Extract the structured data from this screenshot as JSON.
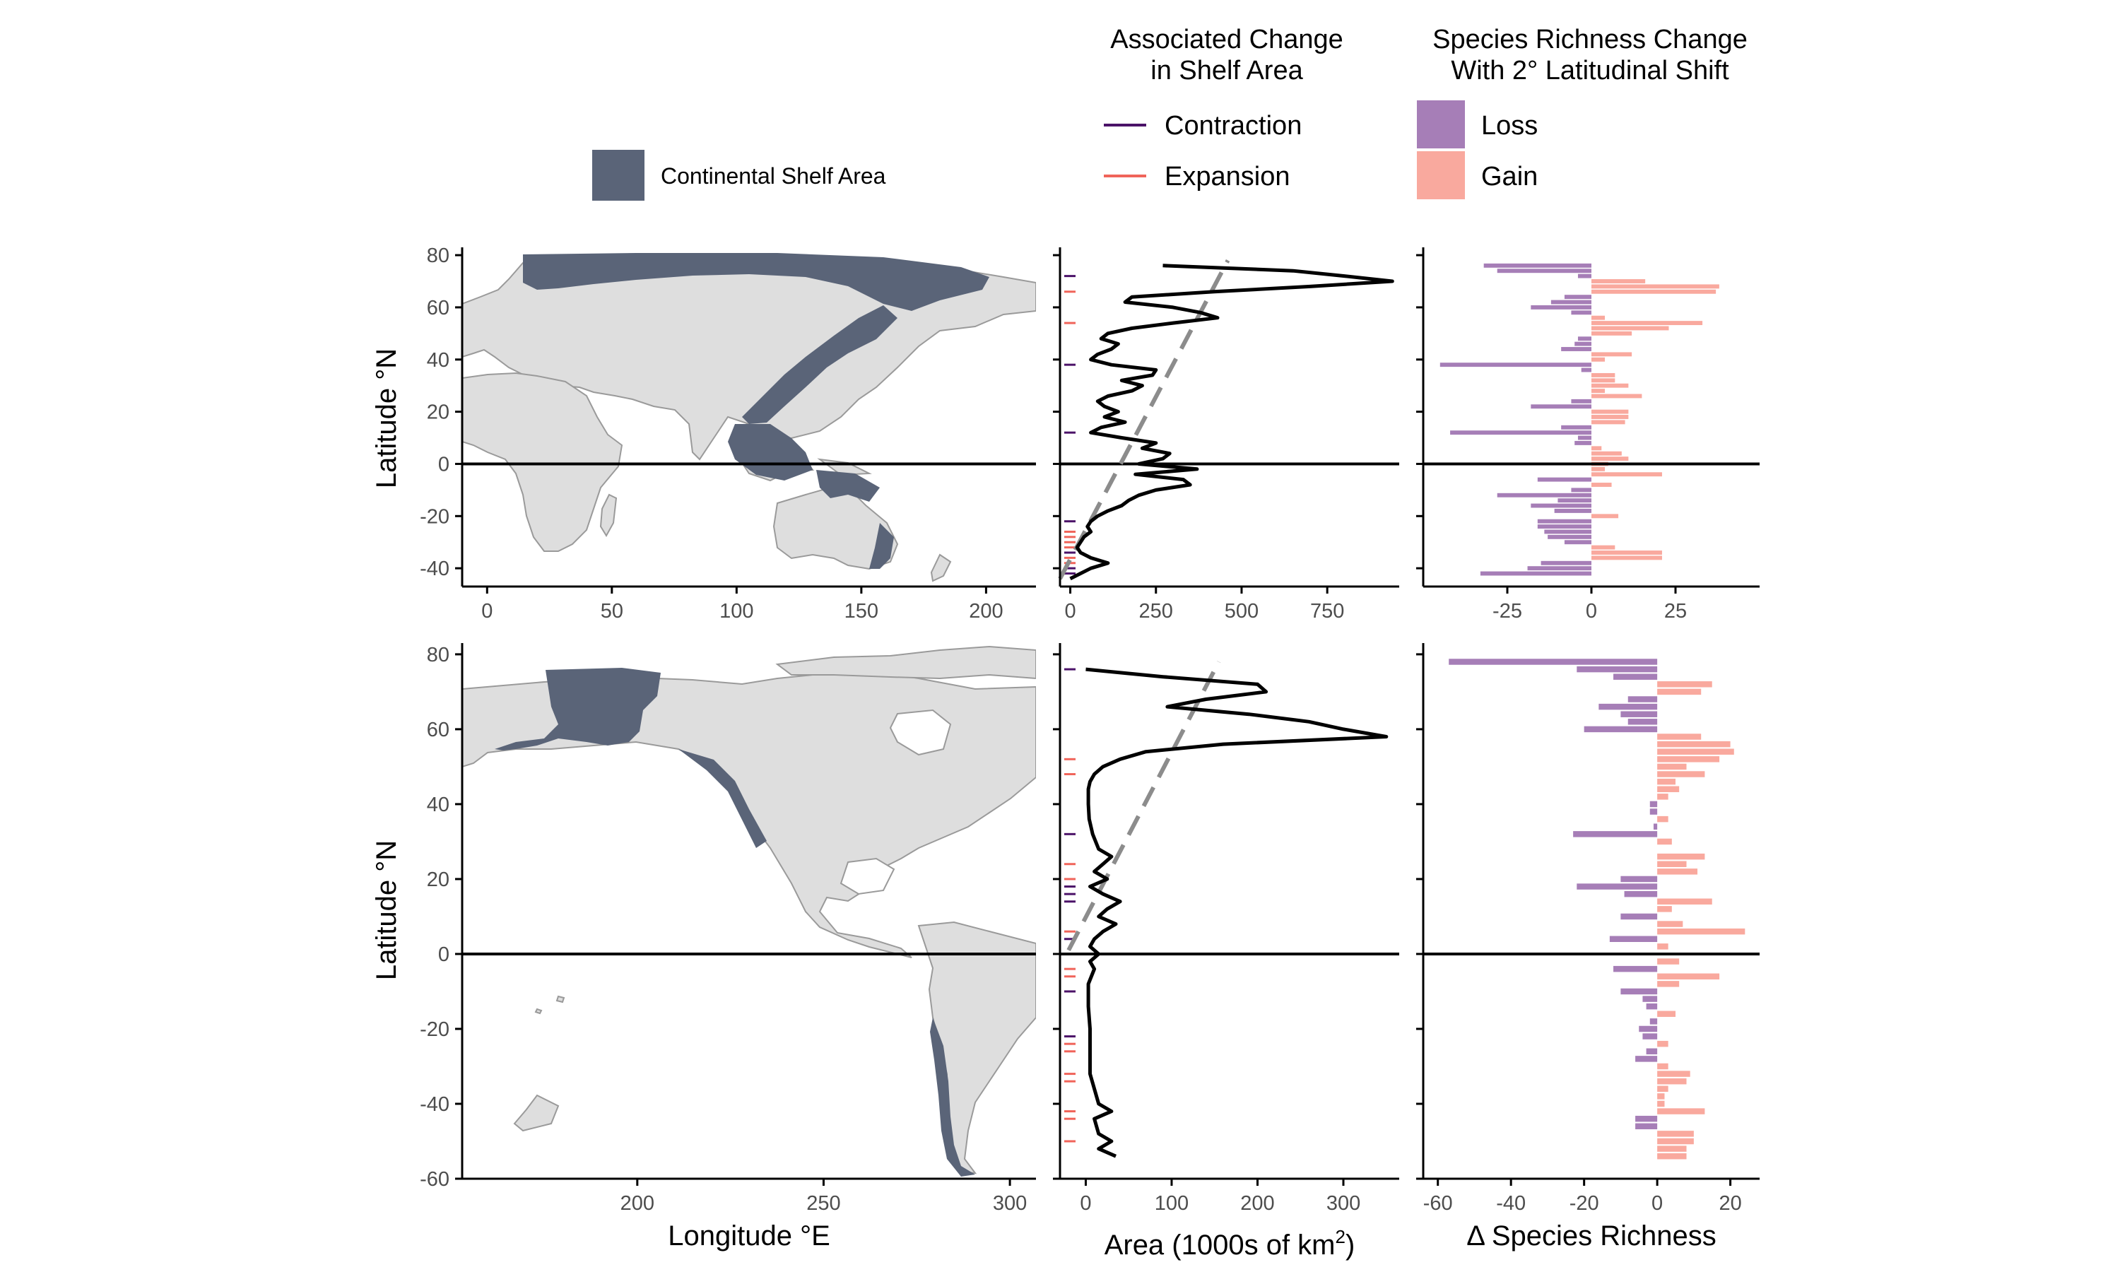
{
  "colors": {
    "shelf": "#5a6478",
    "land": "#dedede",
    "land_border": "#9a9a9a",
    "contraction": "#4b1268",
    "expansion": "#f0645a",
    "loss": "#a67eb7",
    "gain": "#f9a99e",
    "trend": "#8c8c8c",
    "profile": "#000000"
  },
  "legends": {
    "shelf": {
      "label": "Continental Shelf Area"
    },
    "change": {
      "title_line1": "Associated Change",
      "title_line2": "in Shelf Area",
      "items": [
        "Contraction",
        "Expansion"
      ]
    },
    "richness": {
      "title_line1": "Species Richness Change",
      "title_line2": "With 2° Latitudinal Shift",
      "items": [
        "Loss",
        "Gain"
      ]
    }
  },
  "axes": {
    "lat_title": "Latitude °N",
    "lon_title": "Longitude °E",
    "area_title_main": "Area (1000s of km",
    "area_title_sup": "2",
    "area_title_close": ")",
    "richness_title": "Δ Species Richness"
  },
  "chart_data": [
    {
      "type": "area",
      "panel": "top-map",
      "description_source": "map of Eurasia/Africa/Australia with shelf area highlighted",
      "xlim": [
        -10,
        220
      ],
      "ylim": [
        -47,
        83
      ],
      "xticks": [
        0,
        50,
        100,
        150,
        200
      ],
      "yticks": [
        -40,
        -20,
        0,
        20,
        40,
        60,
        80
      ]
    },
    {
      "type": "line",
      "panel": "top-area",
      "xlim": [
        -30,
        960
      ],
      "ylim": [
        -47,
        83
      ],
      "xticks": [
        0,
        250,
        500,
        750
      ],
      "yticks": [
        -40,
        -20,
        0,
        20,
        40,
        60,
        80
      ],
      "profile": [
        {
          "lat": 76,
          "area": 270
        },
        {
          "lat": 74,
          "area": 650
        },
        {
          "lat": 72,
          "area": 800
        },
        {
          "lat": 70,
          "area": 940
        },
        {
          "lat": 68,
          "area": 700
        },
        {
          "lat": 66,
          "area": 420
        },
        {
          "lat": 64,
          "area": 180
        },
        {
          "lat": 62,
          "area": 160
        },
        {
          "lat": 60,
          "area": 300
        },
        {
          "lat": 58,
          "area": 380
        },
        {
          "lat": 56,
          "area": 430
        },
        {
          "lat": 54,
          "area": 300
        },
        {
          "lat": 52,
          "area": 180
        },
        {
          "lat": 50,
          "area": 110
        },
        {
          "lat": 48,
          "area": 90
        },
        {
          "lat": 46,
          "area": 140
        },
        {
          "lat": 44,
          "area": 120
        },
        {
          "lat": 42,
          "area": 80
        },
        {
          "lat": 40,
          "area": 60
        },
        {
          "lat": 38,
          "area": 120
        },
        {
          "lat": 36,
          "area": 250
        },
        {
          "lat": 34,
          "area": 240
        },
        {
          "lat": 32,
          "area": 150
        },
        {
          "lat": 30,
          "area": 210
        },
        {
          "lat": 28,
          "area": 180
        },
        {
          "lat": 26,
          "area": 110
        },
        {
          "lat": 24,
          "area": 80
        },
        {
          "lat": 22,
          "area": 100
        },
        {
          "lat": 20,
          "area": 140
        },
        {
          "lat": 18,
          "area": 100
        },
        {
          "lat": 16,
          "area": 160
        },
        {
          "lat": 14,
          "area": 90
        },
        {
          "lat": 12,
          "area": 60
        },
        {
          "lat": 10,
          "area": 150
        },
        {
          "lat": 8,
          "area": 250
        },
        {
          "lat": 6,
          "area": 210
        },
        {
          "lat": 4,
          "area": 290
        },
        {
          "lat": 2,
          "area": 270
        },
        {
          "lat": 0,
          "area": 200
        },
        {
          "lat": -2,
          "area": 370
        },
        {
          "lat": -4,
          "area": 190
        },
        {
          "lat": -6,
          "area": 330
        },
        {
          "lat": -8,
          "area": 350
        },
        {
          "lat": -10,
          "area": 250
        },
        {
          "lat": -12,
          "area": 200
        },
        {
          "lat": -14,
          "area": 170
        },
        {
          "lat": -16,
          "area": 150
        },
        {
          "lat": -18,
          "area": 110
        },
        {
          "lat": -20,
          "area": 80
        },
        {
          "lat": -22,
          "area": 60
        },
        {
          "lat": -24,
          "area": 50
        },
        {
          "lat": -26,
          "area": 60
        },
        {
          "lat": -28,
          "area": 40
        },
        {
          "lat": -30,
          "area": 30
        },
        {
          "lat": -32,
          "area": 20
        },
        {
          "lat": -34,
          "area": 30
        },
        {
          "lat": -36,
          "area": 60
        },
        {
          "lat": -38,
          "area": 110
        },
        {
          "lat": -40,
          "area": 60
        },
        {
          "lat": -42,
          "area": 30
        },
        {
          "lat": -44,
          "area": 0
        }
      ],
      "trend": [
        {
          "lat": -44,
          "area": -30
        },
        {
          "lat": 78,
          "area": 460
        }
      ],
      "contraction_lats": [
        72,
        38,
        12,
        -22,
        -34,
        -40,
        -42
      ],
      "expansion_lats": [
        66,
        54,
        -26,
        -28,
        -30,
        -32,
        -36,
        -38
      ]
    },
    {
      "type": "bar",
      "panel": "top-richness",
      "xlim": [
        -50,
        50
      ],
      "ylim": [
        -47,
        83
      ],
      "xticks": [
        -25,
        0,
        25
      ],
      "yticks": [
        -40,
        -20,
        0,
        20,
        40,
        60,
        80
      ],
      "bars": [
        {
          "lat": 76,
          "value": -32
        },
        {
          "lat": 74,
          "value": -28
        },
        {
          "lat": 72,
          "value": -4
        },
        {
          "lat": 70,
          "value": 16
        },
        {
          "lat": 68,
          "value": 38
        },
        {
          "lat": 66,
          "value": 37
        },
        {
          "lat": 64,
          "value": -8
        },
        {
          "lat": 62,
          "value": -12
        },
        {
          "lat": 60,
          "value": -18
        },
        {
          "lat": 58,
          "value": -6
        },
        {
          "lat": 56,
          "value": 4
        },
        {
          "lat": 54,
          "value": 33
        },
        {
          "lat": 52,
          "value": 23
        },
        {
          "lat": 50,
          "value": 12
        },
        {
          "lat": 48,
          "value": -4
        },
        {
          "lat": 46,
          "value": -5
        },
        {
          "lat": 44,
          "value": -9
        },
        {
          "lat": 42,
          "value": 12
        },
        {
          "lat": 40,
          "value": 4
        },
        {
          "lat": 38,
          "value": -45
        },
        {
          "lat": 36,
          "value": -3
        },
        {
          "lat": 34,
          "value": 7
        },
        {
          "lat": 32,
          "value": 7
        },
        {
          "lat": 30,
          "value": 11
        },
        {
          "lat": 28,
          "value": 4
        },
        {
          "lat": 26,
          "value": 15
        },
        {
          "lat": 24,
          "value": -6
        },
        {
          "lat": 22,
          "value": -18
        },
        {
          "lat": 20,
          "value": 11
        },
        {
          "lat": 18,
          "value": 11
        },
        {
          "lat": 16,
          "value": 10
        },
        {
          "lat": 14,
          "value": -9
        },
        {
          "lat": 12,
          "value": -42
        },
        {
          "lat": 10,
          "value": -4
        },
        {
          "lat": 8,
          "value": -5
        },
        {
          "lat": 6,
          "value": 3
        },
        {
          "lat": 4,
          "value": 9
        },
        {
          "lat": 2,
          "value": 11
        },
        {
          "lat": 0,
          "value": 5
        },
        {
          "lat": -2,
          "value": 4
        },
        {
          "lat": -4,
          "value": 21
        },
        {
          "lat": -6,
          "value": -16
        },
        {
          "lat": -8,
          "value": 6
        },
        {
          "lat": -10,
          "value": -6
        },
        {
          "lat": -12,
          "value": -28
        },
        {
          "lat": -14,
          "value": -10
        },
        {
          "lat": -16,
          "value": -18
        },
        {
          "lat": -18,
          "value": -11
        },
        {
          "lat": -20,
          "value": 8
        },
        {
          "lat": -22,
          "value": -16
        },
        {
          "lat": -24,
          "value": -16
        },
        {
          "lat": -26,
          "value": -14
        },
        {
          "lat": -28,
          "value": -13
        },
        {
          "lat": -30,
          "value": -8
        },
        {
          "lat": -32,
          "value": 7
        },
        {
          "lat": -34,
          "value": 21
        },
        {
          "lat": -36,
          "value": 21
        },
        {
          "lat": -38,
          "value": -15
        },
        {
          "lat": -40,
          "value": -19
        },
        {
          "lat": -42,
          "value": -33
        }
      ]
    },
    {
      "type": "area",
      "panel": "bottom-map",
      "description_source": "map of the Americas with shelf area highlighted",
      "xlim": [
        153,
        307
      ],
      "ylim": [
        -60,
        83
      ],
      "xticks": [
        200,
        250,
        300
      ],
      "yticks": [
        -60,
        -40,
        -20,
        0,
        20,
        40,
        60,
        80
      ]
    },
    {
      "type": "line",
      "panel": "bottom-area",
      "xlim": [
        -30,
        365
      ],
      "ylim": [
        -60,
        83
      ],
      "xticks": [
        0,
        100,
        200,
        300
      ],
      "yticks": [
        -60,
        -40,
        -20,
        0,
        20,
        40,
        60,
        80
      ],
      "profile": [
        {
          "lat": 76,
          "area": 0
        },
        {
          "lat": 74,
          "area": 90
        },
        {
          "lat": 72,
          "area": 200
        },
        {
          "lat": 70,
          "area": 210
        },
        {
          "lat": 68,
          "area": 140
        },
        {
          "lat": 66,
          "area": 95
        },
        {
          "lat": 64,
          "area": 190
        },
        {
          "lat": 62,
          "area": 260
        },
        {
          "lat": 60,
          "area": 300
        },
        {
          "lat": 58,
          "area": 350
        },
        {
          "lat": 56,
          "area": 160
        },
        {
          "lat": 54,
          "area": 70
        },
        {
          "lat": 52,
          "area": 40
        },
        {
          "lat": 50,
          "area": 20
        },
        {
          "lat": 48,
          "area": 10
        },
        {
          "lat": 46,
          "area": 5
        },
        {
          "lat": 44,
          "area": 3
        },
        {
          "lat": 40,
          "area": 3
        },
        {
          "lat": 36,
          "area": 4
        },
        {
          "lat": 32,
          "area": 8
        },
        {
          "lat": 28,
          "area": 15
        },
        {
          "lat": 26,
          "area": 30
        },
        {
          "lat": 24,
          "area": 20
        },
        {
          "lat": 22,
          "area": 10
        },
        {
          "lat": 20,
          "area": 25
        },
        {
          "lat": 18,
          "area": 5
        },
        {
          "lat": 16,
          "area": 20
        },
        {
          "lat": 14,
          "area": 40
        },
        {
          "lat": 12,
          "area": 25
        },
        {
          "lat": 10,
          "area": 15
        },
        {
          "lat": 8,
          "area": 35
        },
        {
          "lat": 6,
          "area": 20
        },
        {
          "lat": 4,
          "area": 10
        },
        {
          "lat": 2,
          "area": 5
        },
        {
          "lat": 0,
          "area": 15
        },
        {
          "lat": -2,
          "area": 5
        },
        {
          "lat": -4,
          "area": 10
        },
        {
          "lat": -8,
          "area": 3
        },
        {
          "lat": -14,
          "area": 3
        },
        {
          "lat": -20,
          "area": 5
        },
        {
          "lat": -26,
          "area": 5
        },
        {
          "lat": -32,
          "area": 5
        },
        {
          "lat": -36,
          "area": 10
        },
        {
          "lat": -40,
          "area": 15
        },
        {
          "lat": -42,
          "area": 30
        },
        {
          "lat": -44,
          "area": 10
        },
        {
          "lat": -48,
          "area": 15
        },
        {
          "lat": -50,
          "area": 30
        },
        {
          "lat": -52,
          "area": 15
        },
        {
          "lat": -54,
          "area": 35
        }
      ],
      "trend": [
        {
          "lat": 1,
          "area": -20
        },
        {
          "lat": 78,
          "area": 155
        }
      ],
      "contraction_lats": [
        76,
        32,
        18,
        16,
        14,
        4,
        -10,
        -22
      ],
      "expansion_lats": [
        52,
        48,
        24,
        20,
        6,
        -4,
        -6,
        -24,
        -26,
        -32,
        -34,
        -42,
        -44,
        -50
      ]
    },
    {
      "type": "bar",
      "panel": "bottom-richness",
      "xlim": [
        -64,
        28
      ],
      "ylim": [
        -60,
        83
      ],
      "xticks": [
        -60,
        -40,
        -20,
        0,
        20
      ],
      "yticks": [
        -60,
        -40,
        -20,
        0,
        20,
        40,
        60,
        80
      ],
      "bars": [
        {
          "lat": 78,
          "value": -57
        },
        {
          "lat": 76,
          "value": -22
        },
        {
          "lat": 74,
          "value": -12
        },
        {
          "lat": 72,
          "value": 15
        },
        {
          "lat": 70,
          "value": 12
        },
        {
          "lat": 68,
          "value": -8
        },
        {
          "lat": 66,
          "value": -16
        },
        {
          "lat": 64,
          "value": -10
        },
        {
          "lat": 62,
          "value": -8
        },
        {
          "lat": 60,
          "value": -20
        },
        {
          "lat": 58,
          "value": 12
        },
        {
          "lat": 56,
          "value": 20
        },
        {
          "lat": 54,
          "value": 21
        },
        {
          "lat": 52,
          "value": 17
        },
        {
          "lat": 50,
          "value": 8
        },
        {
          "lat": 48,
          "value": 13
        },
        {
          "lat": 46,
          "value": 5
        },
        {
          "lat": 44,
          "value": 6
        },
        {
          "lat": 42,
          "value": 3
        },
        {
          "lat": 40,
          "value": -2
        },
        {
          "lat": 38,
          "value": -2
        },
        {
          "lat": 36,
          "value": 3
        },
        {
          "lat": 34,
          "value": -1
        },
        {
          "lat": 32,
          "value": -23
        },
        {
          "lat": 30,
          "value": 4
        },
        {
          "lat": 28,
          "value": 0
        },
        {
          "lat": 26,
          "value": 13
        },
        {
          "lat": 24,
          "value": 8
        },
        {
          "lat": 22,
          "value": 11
        },
        {
          "lat": 20,
          "value": -10
        },
        {
          "lat": 18,
          "value": -22
        },
        {
          "lat": 16,
          "value": -9
        },
        {
          "lat": 14,
          "value": 15
        },
        {
          "lat": 12,
          "value": 4
        },
        {
          "lat": 10,
          "value": -10
        },
        {
          "lat": 8,
          "value": 7
        },
        {
          "lat": 6,
          "value": 24
        },
        {
          "lat": 4,
          "value": -13
        },
        {
          "lat": 2,
          "value": 3
        },
        {
          "lat": 0,
          "value": 0
        },
        {
          "lat": -2,
          "value": 6
        },
        {
          "lat": -4,
          "value": -12
        },
        {
          "lat": -6,
          "value": 17
        },
        {
          "lat": -8,
          "value": 6
        },
        {
          "lat": -10,
          "value": -10
        },
        {
          "lat": -12,
          "value": -4
        },
        {
          "lat": -14,
          "value": -3
        },
        {
          "lat": -16,
          "value": 5
        },
        {
          "lat": -18,
          "value": -2
        },
        {
          "lat": -20,
          "value": -5
        },
        {
          "lat": -22,
          "value": -4
        },
        {
          "lat": -24,
          "value": 3
        },
        {
          "lat": -26,
          "value": -3
        },
        {
          "lat": -28,
          "value": -6
        },
        {
          "lat": -30,
          "value": 3
        },
        {
          "lat": -32,
          "value": 9
        },
        {
          "lat": -34,
          "value": 8
        },
        {
          "lat": -36,
          "value": 3
        },
        {
          "lat": -38,
          "value": 2
        },
        {
          "lat": -40,
          "value": 2
        },
        {
          "lat": -42,
          "value": 13
        },
        {
          "lat": -44,
          "value": -6
        },
        {
          "lat": -46,
          "value": -6
        },
        {
          "lat": -48,
          "value": 10
        },
        {
          "lat": -50,
          "value": 10
        },
        {
          "lat": -52,
          "value": 8
        },
        {
          "lat": -54,
          "value": 8
        }
      ]
    }
  ]
}
